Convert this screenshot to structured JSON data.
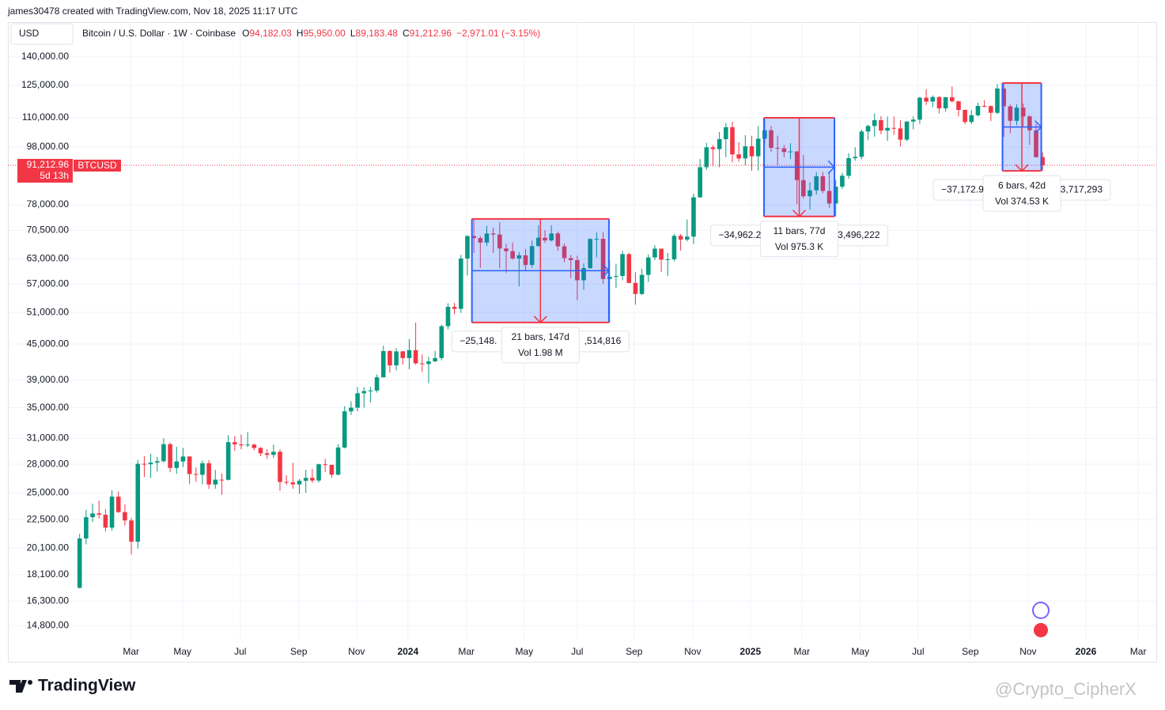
{
  "page": {
    "credit": "james30478 created with TradingView.com, Nov 18, 2025 11:17 UTC",
    "brand": "TradingView",
    "watermark": "@Crypto_CipherX"
  },
  "chart_data": {
    "type": "candlestick",
    "currency": "USD",
    "symbol": "Bitcoin / U.S. Dollar · 1W · Coinbase",
    "symbol_tag": "BTCUSD",
    "ohlc_letters": [
      "O",
      "H",
      "L",
      "C"
    ],
    "ohlc_labels": [
      "94,182.03",
      "95,950.00",
      "89,183.48",
      "91,212.96"
    ],
    "change_label": "−2,971.01 (−3.15%)",
    "last_price_label": "91,212.96",
    "countdown": "5d 13h",
    "log_scale": true,
    "grid": true,
    "up_color": "#089981",
    "down_color": "#f23645",
    "xlim": [
      -11.1,
      166.6
    ],
    "ylim": [
      14000,
      148000
    ],
    "xticks": [
      {
        "value": 7.96,
        "label": "Mar"
      },
      {
        "value": 15.91,
        "label": "May"
      },
      {
        "value": 24.85,
        "label": "Jul"
      },
      {
        "value": 33.9,
        "label": "Sep"
      },
      {
        "value": 42.84,
        "label": "Nov"
      },
      {
        "value": 50.8,
        "label": "2024"
      },
      {
        "value": 59.85,
        "label": "Mar"
      },
      {
        "value": 68.79,
        "label": "May"
      },
      {
        "value": 76.99,
        "label": "Jul"
      },
      {
        "value": 85.8,
        "label": "Sep"
      },
      {
        "value": 94.86,
        "label": "Nov"
      },
      {
        "value": 103.79,
        "label": "2025"
      },
      {
        "value": 111.75,
        "label": "Mar"
      },
      {
        "value": 120.8,
        "label": "May"
      },
      {
        "value": 129.74,
        "label": "Jul"
      },
      {
        "value": 137.82,
        "label": "Sep"
      },
      {
        "value": 146.76,
        "label": "Nov"
      },
      {
        "value": 155.7,
        "label": "2026"
      },
      {
        "value": 163.8,
        "label": "Mar"
      }
    ],
    "yticks": [
      {
        "value": 140000,
        "label": "140,000.00"
      },
      {
        "value": 125000,
        "label": "125,000.00"
      },
      {
        "value": 110000,
        "label": "110,000.00"
      },
      {
        "value": 98000,
        "label": "98,000.00"
      },
      {
        "value": 78000,
        "label": "78,000.00"
      },
      {
        "value": 70500,
        "label": "70,500.00"
      },
      {
        "value": 63000,
        "label": "63,000.00"
      },
      {
        "value": 57000,
        "label": "57,000.00"
      },
      {
        "value": 51000,
        "label": "51,000.00"
      },
      {
        "value": 45000,
        "label": "45,000.00"
      },
      {
        "value": 39000,
        "label": "39,000.00"
      },
      {
        "value": 35000,
        "label": "35,000.00"
      },
      {
        "value": 31000,
        "label": "31,000.00"
      },
      {
        "value": 28000,
        "label": "28,000.00"
      },
      {
        "value": 25000,
        "label": "25,000.00"
      },
      {
        "value": 22500,
        "label": "22,500.00"
      },
      {
        "value": 20100,
        "label": "20,100.00"
      },
      {
        "value": 18100,
        "label": "18,100.00"
      },
      {
        "value": 16300,
        "label": "16,300.00"
      },
      {
        "value": 14800,
        "label": "14,800.00"
      }
    ],
    "candles": [
      [
        17180,
        21260,
        17130,
        20880
      ],
      [
        20880,
        23370,
        20400,
        22710
      ],
      [
        22710,
        23950,
        22300,
        23050
      ],
      [
        23050,
        24250,
        22600,
        22930
      ],
      [
        22930,
        23450,
        21450,
        21790
      ],
      [
        21790,
        25250,
        21550,
        24630
      ],
      [
        24630,
        25130,
        23100,
        23170
      ],
      [
        23170,
        23880,
        21970,
        22420
      ],
      [
        22420,
        22650,
        19600,
        20610
      ],
      [
        20610,
        28470,
        20050,
        28040
      ],
      [
        28040,
        28900,
        26600,
        27990
      ],
      [
        27990,
        29190,
        26520,
        28170
      ],
      [
        28170,
        28800,
        27200,
        28330
      ],
      [
        28330,
        31000,
        28170,
        30300
      ],
      [
        30300,
        30500,
        27130,
        27590
      ],
      [
        27590,
        30000,
        26950,
        28300
      ],
      [
        28300,
        29850,
        27680,
        28860
      ],
      [
        28860,
        28900,
        25870,
        26930
      ],
      [
        26930,
        27650,
        26130,
        26850
      ],
      [
        26850,
        28400,
        25870,
        28100
      ],
      [
        28100,
        28450,
        25400,
        25840
      ],
      [
        25840,
        27380,
        25400,
        26340
      ],
      [
        26340,
        27000,
        24800,
        26330
      ],
      [
        26330,
        31400,
        26250,
        30540
      ],
      [
        30540,
        31300,
        29550,
        30270
      ],
      [
        30270,
        31500,
        29700,
        30160
      ],
      [
        30160,
        31800,
        29950,
        30250
      ],
      [
        30250,
        30350,
        29600,
        29850
      ],
      [
        29850,
        29950,
        28900,
        29230
      ],
      [
        29230,
        29700,
        28600,
        29050
      ],
      [
        29050,
        30250,
        28700,
        29400
      ],
      [
        29400,
        29700,
        25200,
        26100
      ],
      [
        26100,
        26800,
        25800,
        26050
      ],
      [
        26050,
        28150,
        25400,
        25850
      ],
      [
        25850,
        26400,
        24900,
        26220
      ],
      [
        26220,
        27400,
        25000,
        26530
      ],
      [
        26530,
        27480,
        26000,
        26250
      ],
      [
        26250,
        28050,
        26050,
        27990
      ],
      [
        27990,
        28600,
        27150,
        27920
      ],
      [
        27920,
        27950,
        26550,
        26860
      ],
      [
        26860,
        30300,
        26800,
        29900
      ],
      [
        29900,
        35200,
        29800,
        34500
      ],
      [
        34500,
        35900,
        34000,
        35000
      ],
      [
        35000,
        37970,
        34500,
        37050
      ],
      [
        37050,
        37950,
        35000,
        37370
      ],
      [
        37370,
        38000,
        35700,
        37450
      ],
      [
        37450,
        39900,
        37150,
        39460
      ],
      [
        39460,
        44700,
        39450,
        43770
      ],
      [
        43770,
        43900,
        40200,
        41370
      ],
      [
        41370,
        44300,
        40550,
        43720
      ],
      [
        43720,
        43800,
        41500,
        42580
      ],
      [
        42580,
        45900,
        40750,
        43930
      ],
      [
        43930,
        49000,
        41500,
        41700
      ],
      [
        41700,
        43200,
        40300,
        41590
      ],
      [
        41590,
        42800,
        38550,
        42030
      ],
      [
        42030,
        43800,
        41900,
        42580
      ],
      [
        42580,
        48550,
        42200,
        48300
      ],
      [
        48300,
        52850,
        47700,
        52130
      ],
      [
        52130,
        52950,
        50600,
        51730
      ],
      [
        51730,
        64000,
        50900,
        63100
      ],
      [
        63100,
        69200,
        59000,
        68950
      ],
      [
        68950,
        73780,
        64500,
        68400
      ],
      [
        68400,
        68950,
        60800,
        67200
      ],
      [
        67200,
        71800,
        66300,
        69650
      ],
      [
        69650,
        71300,
        64500,
        69360
      ],
      [
        69360,
        72800,
        60700,
        65650
      ],
      [
        65650,
        66900,
        59600,
        64950
      ],
      [
        64950,
        67200,
        62800,
        63110
      ],
      [
        63110,
        64750,
        56500,
        63900
      ],
      [
        63900,
        65500,
        60200,
        61500
      ],
      [
        61500,
        67700,
        60800,
        66270
      ],
      [
        66270,
        71950,
        66100,
        68500
      ],
      [
        68500,
        70600,
        67100,
        67770
      ],
      [
        67770,
        71950,
        67500,
        69650
      ],
      [
        69650,
        70150,
        65050,
        66200
      ],
      [
        66200,
        66950,
        62200,
        63200
      ],
      [
        63200,
        64000,
        58400,
        62700
      ],
      [
        62700,
        63800,
        53500,
        57900
      ],
      [
        57900,
        61900,
        55750,
        60750
      ],
      [
        60750,
        68350,
        60600,
        68150
      ],
      [
        68150,
        70000,
        63400,
        68200
      ],
      [
        68200,
        70000,
        57100,
        58200
      ],
      [
        58200,
        62700,
        49000,
        58700
      ],
      [
        58700,
        61800,
        56150,
        58900
      ],
      [
        58900,
        65000,
        57900,
        64200
      ],
      [
        64200,
        64500,
        57200,
        57300
      ],
      [
        57300,
        59800,
        52550,
        54850
      ],
      [
        54850,
        60600,
        54600,
        59150
      ],
      [
        59150,
        64100,
        57500,
        63350
      ],
      [
        63350,
        66500,
        62700,
        65600
      ],
      [
        65600,
        65600,
        59800,
        62800
      ],
      [
        62800,
        64500,
        58900,
        62900
      ],
      [
        62900,
        69500,
        62400,
        69000
      ],
      [
        69000,
        69500,
        65100,
        68000
      ],
      [
        68000,
        73600,
        67500,
        68800
      ],
      [
        68800,
        81500,
        66800,
        80350
      ],
      [
        80350,
        93450,
        80200,
        90500
      ],
      [
        90500,
        99600,
        89500,
        97900
      ],
      [
        97900,
        98800,
        90800,
        97200
      ],
      [
        97200,
        104000,
        90500,
        101100
      ],
      [
        101100,
        107800,
        94200,
        106000
      ],
      [
        106000,
        108300,
        92200,
        95200
      ],
      [
        95200,
        99900,
        92500,
        93700
      ],
      [
        93700,
        102700,
        91200,
        98300
      ],
      [
        98300,
        102500,
        89200,
        94500
      ],
      [
        94500,
        106400,
        89300,
        101300
      ],
      [
        101300,
        109600,
        99500,
        104700
      ],
      [
        104700,
        106500,
        96200,
        97700
      ],
      [
        97700,
        102500,
        91200,
        97500
      ],
      [
        97500,
        98800,
        94100,
        96100
      ],
      [
        96100,
        99500,
        93400,
        96300
      ],
      [
        96300,
        96500,
        78200,
        86000
      ],
      [
        86000,
        95000,
        80000,
        80700
      ],
      [
        80700,
        85300,
        76600,
        82600
      ],
      [
        82600,
        88800,
        81200,
        87300
      ],
      [
        87300,
        88800,
        81600,
        82400
      ],
      [
        82400,
        88500,
        77100,
        78400
      ],
      [
        78400,
        86000,
        74500,
        83800
      ],
      [
        83800,
        88500,
        83100,
        87500
      ],
      [
        87500,
        95700,
        86500,
        93800
      ],
      [
        93800,
        97900,
        92800,
        94300
      ],
      [
        94300,
        104900,
        93400,
        104200
      ],
      [
        104200,
        107000,
        100700,
        106500
      ],
      [
        106500,
        111900,
        102100,
        109000
      ],
      [
        109000,
        110700,
        103100,
        104600
      ],
      [
        104600,
        110500,
        100400,
        105700
      ],
      [
        105700,
        110600,
        102800,
        105500
      ],
      [
        105500,
        108900,
        98200,
        100900
      ],
      [
        100900,
        108500,
        100300,
        108400
      ],
      [
        108400,
        110600,
        105100,
        109200
      ],
      [
        109200,
        119500,
        107400,
        119100
      ],
      [
        119100,
        123200,
        115700,
        117300
      ],
      [
        117300,
        120200,
        114700,
        119400
      ],
      [
        119400,
        119800,
        111900,
        114200
      ],
      [
        114200,
        119500,
        112700,
        119300
      ],
      [
        119300,
        124500,
        116800,
        117400
      ],
      [
        117400,
        117600,
        110600,
        113500
      ],
      [
        113500,
        113600,
        107300,
        108200
      ],
      [
        108200,
        113400,
        107300,
        111100
      ],
      [
        111100,
        116700,
        110600,
        115300
      ],
      [
        115300,
        117900,
        114700,
        115200
      ],
      [
        115200,
        115500,
        108600,
        112200
      ],
      [
        112200,
        125700,
        111600,
        123500
      ],
      [
        123500,
        126200,
        102000,
        115100
      ],
      [
        115100,
        115900,
        103500,
        108700
      ],
      [
        108700,
        116000,
        106800,
        114500
      ],
      [
        114500,
        116400,
        106300,
        110600
      ],
      [
        110600,
        111200,
        98900,
        104700
      ],
      [
        104700,
        107500,
        94000,
        94182
      ],
      [
        94182.03,
        95950,
        89183.48,
        91212.96
      ]
    ],
    "measures": [
      {
        "start": 60.7,
        "end": 81.9,
        "high": 73780,
        "low": 49000,
        "change_left": "−25,148.",
        "bars": "21 bars, 147d",
        "vol": "Vol 1.98 M",
        "change_right": ",514,816"
      },
      {
        "start": 105.9,
        "end": 116.8,
        "high": 110000,
        "low": 74500,
        "change_left": "−34,962.2",
        "bars": "11 bars, 77d",
        "vol": "Vol 975.3 K",
        "change_right": "3,496,222"
      },
      {
        "start": 142.8,
        "end": 148.8,
        "high": 126200,
        "low": 89183.48,
        "change_left": "−37,172.9",
        "bars": "6 bars, 42d",
        "vol": "Vol 374.53 K",
        "change_right": "3,717,293"
      }
    ]
  }
}
